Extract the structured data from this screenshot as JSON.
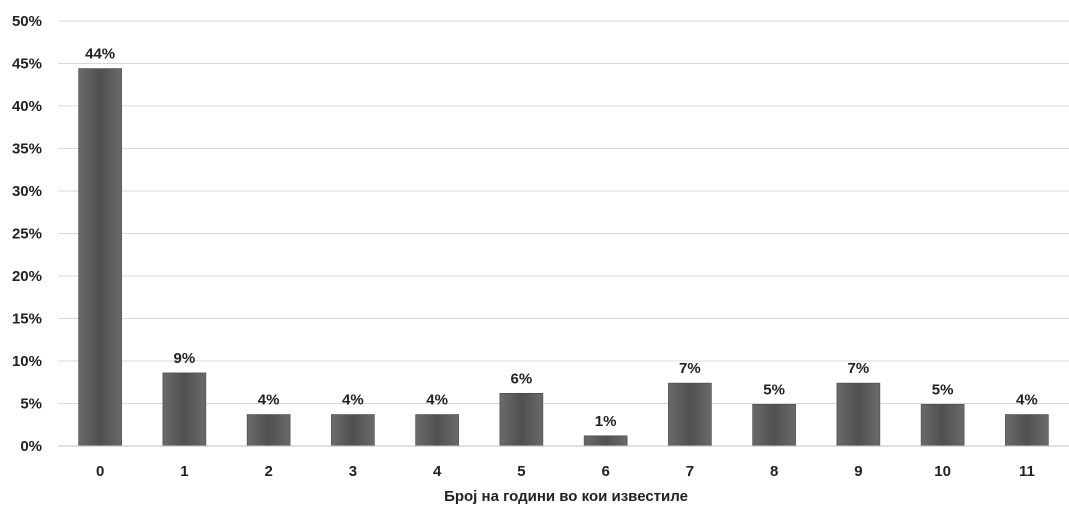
{
  "chart_data": {
    "type": "bar",
    "categories": [
      "0",
      "1",
      "2",
      "3",
      "4",
      "5",
      "6",
      "7",
      "8",
      "9",
      "10",
      "11"
    ],
    "values": [
      44.4,
      8.6,
      3.7,
      3.7,
      3.7,
      6.2,
      1.2,
      7.4,
      4.9,
      7.4,
      4.9,
      3.7
    ],
    "data_labels": [
      "44%",
      "9%",
      "4%",
      "4%",
      "4%",
      "6%",
      "1%",
      "7%",
      "5%",
      "7%",
      "5%",
      "4%"
    ],
    "xlabel": "Број на години во кои известиле",
    "ylabel": "",
    "ylim": [
      0,
      50
    ],
    "y_ticks": [
      "0%",
      "5%",
      "10%",
      "15%",
      "20%",
      "25%",
      "30%",
      "35%",
      "40%",
      "45%",
      "50%"
    ],
    "grid": true,
    "legend": "none",
    "bar_color": "#5a5a5a"
  }
}
